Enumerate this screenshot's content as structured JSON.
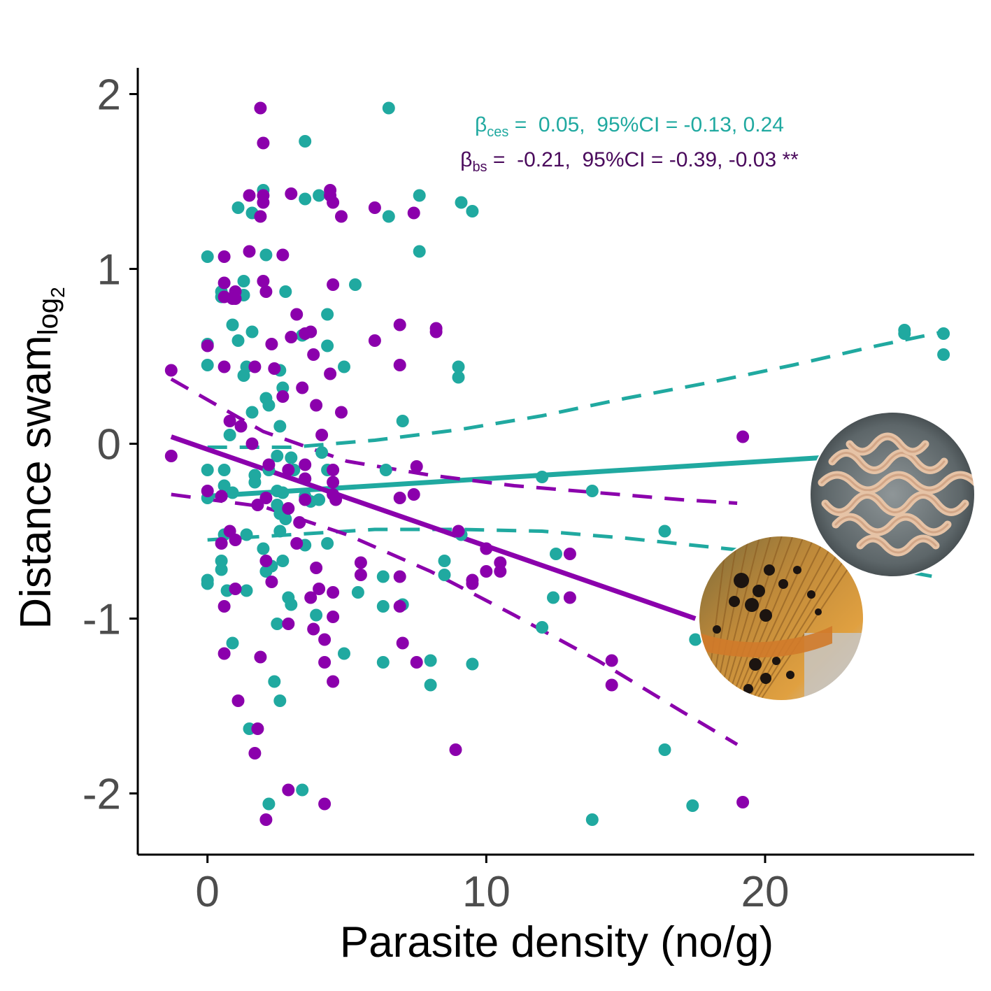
{
  "chart_data": {
    "type": "scatter",
    "xlabel": "Parasite density (no/g)",
    "ylabel": {
      "main": "Distance swam",
      "sub": "log",
      "subsub": "2"
    },
    "xlim": [
      -2.5,
      27.5
    ],
    "ylim": [
      -2.35,
      2.15
    ],
    "xticks": [
      0,
      10,
      20
    ],
    "yticks": [
      -2,
      -1,
      0,
      1,
      2
    ],
    "grid": false,
    "legend": "none",
    "colors": {
      "ces": "#20a9a0",
      "bs": "#8b00ac",
      "bs_annot": "#4a0a5c"
    },
    "annotations": [
      {
        "series": "ces",
        "beta": "β",
        "sub": "ces",
        "text": " =  0.05,  95%CI = -0.13, 0.24"
      },
      {
        "series": "bs",
        "beta": "β",
        "sub": "bs",
        "text": " =  -0.21,  95%CI = -0.39, -0.03 **"
      }
    ],
    "series": [
      {
        "id": "ces",
        "points": [
          [
            6.5,
            1.92
          ],
          [
            3.5,
            1.73
          ],
          [
            2.0,
            1.45
          ],
          [
            3.5,
            1.4
          ],
          [
            4.0,
            1.42
          ],
          [
            7.6,
            1.42
          ],
          [
            9.1,
            1.38
          ],
          [
            9.5,
            1.33
          ],
          [
            1.1,
            1.35
          ],
          [
            1.6,
            1.32
          ],
          [
            6.5,
            1.3
          ],
          [
            7.6,
            1.1
          ],
          [
            0.0,
            1.07
          ],
          [
            2.1,
            1.08
          ],
          [
            5.3,
            0.91
          ],
          [
            2.8,
            0.87
          ],
          [
            1.3,
            0.93
          ],
          [
            1.3,
            0.85
          ],
          [
            0.5,
            0.87
          ],
          [
            0.5,
            0.84
          ],
          [
            4.3,
            0.74
          ],
          [
            0.9,
            0.68
          ],
          [
            1.6,
            0.64
          ],
          [
            3.4,
            0.62
          ],
          [
            1.1,
            0.59
          ],
          [
            4.3,
            0.56
          ],
          [
            0.0,
            0.57
          ],
          [
            9.0,
            0.44
          ],
          [
            9.0,
            0.38
          ],
          [
            4.9,
            0.44
          ],
          [
            0.0,
            0.45
          ],
          [
            2.6,
            0.42
          ],
          [
            1.4,
            0.44
          ],
          [
            1.3,
            0.39
          ],
          [
            25.0,
            0.65
          ],
          [
            25.0,
            0.63
          ],
          [
            26.4,
            0.63
          ],
          [
            26.4,
            0.51
          ],
          [
            2.7,
            0.32
          ],
          [
            2.1,
            0.26
          ],
          [
            2.2,
            0.22
          ],
          [
            1.6,
            0.18
          ],
          [
            7.0,
            0.13
          ],
          [
            2.6,
            0.1
          ],
          [
            0.8,
            0.05
          ],
          [
            4.1,
            -0.05
          ],
          [
            2.5,
            -0.07
          ],
          [
            3.0,
            -0.08
          ],
          [
            0.0,
            -0.15
          ],
          [
            0.6,
            -0.15
          ],
          [
            2.2,
            -0.15
          ],
          [
            3.1,
            -0.15
          ],
          [
            4.3,
            -0.15
          ],
          [
            6.4,
            -0.15
          ],
          [
            1.7,
            -0.18
          ],
          [
            3.5,
            -0.2
          ],
          [
            12.0,
            -0.19
          ],
          [
            0.6,
            -0.24
          ],
          [
            1.7,
            -0.22
          ],
          [
            2.5,
            -0.27
          ],
          [
            0.9,
            -0.28
          ],
          [
            2.7,
            -0.28
          ],
          [
            3.5,
            -0.3
          ],
          [
            4.0,
            -0.32
          ],
          [
            13.8,
            -0.27
          ],
          [
            2.5,
            -0.35
          ],
          [
            0.0,
            -0.31
          ],
          [
            3.7,
            -0.33
          ],
          [
            2.6,
            -0.4
          ],
          [
            2.8,
            -0.43
          ],
          [
            2.6,
            -0.5
          ],
          [
            0.6,
            -0.52
          ],
          [
            9.1,
            -0.52
          ],
          [
            16.4,
            -0.5
          ],
          [
            1.4,
            -0.52
          ],
          [
            2.0,
            -0.6
          ],
          [
            3.5,
            -0.58
          ],
          [
            4.3,
            -0.57
          ],
          [
            12.5,
            -0.63
          ],
          [
            0.5,
            -0.67
          ],
          [
            2.3,
            -0.7
          ],
          [
            2.7,
            -0.67
          ],
          [
            8.5,
            -0.67
          ],
          [
            0.5,
            -0.72
          ],
          [
            2.1,
            -0.73
          ],
          [
            0.0,
            -0.78
          ],
          [
            0.0,
            -0.8
          ],
          [
            6.3,
            -0.76
          ],
          [
            8.5,
            -0.75
          ],
          [
            0.7,
            -0.84
          ],
          [
            5.4,
            -0.85
          ],
          [
            1.4,
            -0.84
          ],
          [
            2.9,
            -0.88
          ],
          [
            12.4,
            -0.88
          ],
          [
            3.0,
            -0.92
          ],
          [
            6.3,
            -0.93
          ],
          [
            7.0,
            -0.92
          ],
          [
            3.9,
            -0.98
          ],
          [
            2.5,
            -1.03
          ],
          [
            12.0,
            -1.05
          ],
          [
            0.9,
            -1.14
          ],
          [
            17.5,
            -1.12
          ],
          [
            4.9,
            -1.2
          ],
          [
            6.3,
            -1.25
          ],
          [
            8.0,
            -1.24
          ],
          [
            9.5,
            -1.26
          ],
          [
            2.4,
            -1.36
          ],
          [
            8.0,
            -1.38
          ],
          [
            2.6,
            -1.47
          ],
          [
            1.5,
            -1.63
          ],
          [
            16.4,
            -1.75
          ],
          [
            3.4,
            -1.98
          ],
          [
            2.2,
            -2.06
          ],
          [
            17.4,
            -2.07
          ],
          [
            13.8,
            -2.15
          ]
        ]
      },
      {
        "id": "bs",
        "points": [
          [
            1.9,
            1.92
          ],
          [
            2.0,
            1.72
          ],
          [
            1.5,
            1.42
          ],
          [
            2.0,
            1.42
          ],
          [
            2.0,
            1.38
          ],
          [
            3.0,
            1.43
          ],
          [
            4.4,
            1.45
          ],
          [
            4.4,
            1.42
          ],
          [
            4.5,
            1.38
          ],
          [
            1.9,
            1.3
          ],
          [
            7.4,
            1.32
          ],
          [
            4.8,
            1.3
          ],
          [
            6.0,
            1.35
          ],
          [
            1.5,
            1.1
          ],
          [
            2.7,
            1.08
          ],
          [
            0.6,
            1.07
          ],
          [
            2.0,
            0.93
          ],
          [
            0.6,
            0.92
          ],
          [
            4.5,
            0.91
          ],
          [
            1.0,
            0.87
          ],
          [
            2.1,
            0.87
          ],
          [
            0.6,
            0.84
          ],
          [
            0.9,
            0.83
          ],
          [
            1.0,
            0.83
          ],
          [
            3.2,
            0.74
          ],
          [
            3.7,
            0.64
          ],
          [
            3.5,
            0.63
          ],
          [
            3.0,
            0.61
          ],
          [
            6.9,
            0.68
          ],
          [
            8.2,
            0.66
          ],
          [
            8.2,
            0.64
          ],
          [
            6.0,
            0.59
          ],
          [
            0.0,
            0.56
          ],
          [
            2.3,
            0.57
          ],
          [
            3.8,
            0.51
          ],
          [
            1.7,
            0.44
          ],
          [
            2.4,
            0.43
          ],
          [
            0.6,
            0.44
          ],
          [
            6.9,
            0.45
          ],
          [
            4.4,
            0.4
          ],
          [
            -1.3,
            0.42
          ],
          [
            3.4,
            0.32
          ],
          [
            2.7,
            0.27
          ],
          [
            3.9,
            0.22
          ],
          [
            4.8,
            0.18
          ],
          [
            0.8,
            0.13
          ],
          [
            1.2,
            0.1
          ],
          [
            4.1,
            0.05
          ],
          [
            19.2,
            0.04
          ],
          [
            1.6,
            0.0
          ],
          [
            -1.3,
            -0.07
          ],
          [
            2.2,
            -0.12
          ],
          [
            3.5,
            -0.12
          ],
          [
            4.5,
            -0.15
          ],
          [
            7.5,
            -0.13
          ],
          [
            2.9,
            -0.15
          ],
          [
            3.5,
            -0.2
          ],
          [
            4.5,
            -0.22
          ],
          [
            0.0,
            -0.27
          ],
          [
            4.5,
            -0.29
          ],
          [
            0.5,
            -0.3
          ],
          [
            7.4,
            -0.29
          ],
          [
            2.1,
            -0.31
          ],
          [
            3.5,
            -0.32
          ],
          [
            4.6,
            -0.32
          ],
          [
            6.9,
            -0.31
          ],
          [
            1.8,
            -0.35
          ],
          [
            2.9,
            -0.37
          ],
          [
            3.3,
            -0.45
          ],
          [
            0.8,
            -0.5
          ],
          [
            9.0,
            -0.5
          ],
          [
            1.0,
            -0.55
          ],
          [
            0.5,
            -0.57
          ],
          [
            3.2,
            -0.57
          ],
          [
            10.0,
            -0.6
          ],
          [
            2.1,
            -0.67
          ],
          [
            5.5,
            -0.68
          ],
          [
            10.5,
            -0.68
          ],
          [
            3.9,
            -0.71
          ],
          [
            10.0,
            -0.73
          ],
          [
            10.5,
            -0.73
          ],
          [
            13.0,
            -0.63
          ],
          [
            2.3,
            -0.79
          ],
          [
            5.5,
            -0.75
          ],
          [
            6.9,
            -0.76
          ],
          [
            9.5,
            -0.78
          ],
          [
            9.5,
            -0.8
          ],
          [
            4.0,
            -0.83
          ],
          [
            4.5,
            -0.85
          ],
          [
            1.0,
            -0.83
          ],
          [
            13.0,
            -0.88
          ],
          [
            3.7,
            -0.88
          ],
          [
            0.6,
            -0.93
          ],
          [
            6.9,
            -0.93
          ],
          [
            4.5,
            -0.99
          ],
          [
            2.9,
            -1.03
          ],
          [
            3.8,
            -1.06
          ],
          [
            4.2,
            -1.12
          ],
          [
            7.0,
            -1.14
          ],
          [
            0.6,
            -1.2
          ],
          [
            1.9,
            -1.22
          ],
          [
            4.2,
            -1.25
          ],
          [
            7.5,
            -1.25
          ],
          [
            14.5,
            -1.24
          ],
          [
            4.5,
            -1.36
          ],
          [
            14.5,
            -1.38
          ],
          [
            1.1,
            -1.47
          ],
          [
            1.8,
            -1.63
          ],
          [
            1.7,
            -1.77
          ],
          [
            8.9,
            -1.75
          ],
          [
            2.9,
            -1.98
          ],
          [
            4.2,
            -2.06
          ],
          [
            2.1,
            -2.15
          ],
          [
            19.2,
            -2.05
          ]
        ]
      }
    ],
    "fit_lines": [
      {
        "series": "ces",
        "style": "solid",
        "x": [
          0.0,
          22.0
        ],
        "y": [
          -0.3,
          -0.08
        ]
      },
      {
        "series": "ces",
        "style": "dashed",
        "x": [
          0.0,
          3.0,
          6.0,
          9.0,
          12.0,
          15.0,
          18.0,
          21.0,
          24.0,
          26.4
        ],
        "y": [
          -0.02,
          -0.02,
          0.02,
          0.08,
          0.16,
          0.26,
          0.35,
          0.45,
          0.56,
          0.64
        ]
      },
      {
        "series": "ces",
        "style": "dashed",
        "x": [
          0.0,
          3.0,
          6.0,
          9.0,
          12.0,
          15.0,
          18.0,
          21.0,
          24.0,
          26.4
        ],
        "y": [
          -0.55,
          -0.52,
          -0.49,
          -0.49,
          -0.5,
          -0.54,
          -0.59,
          -0.64,
          -0.7,
          -0.77
        ]
      },
      {
        "series": "bs",
        "style": "solid",
        "x": [
          -1.3,
          17.5
        ],
        "y": [
          0.04,
          -1.0
        ]
      },
      {
        "series": "bs",
        "style": "dashed",
        "x": [
          -1.3,
          2.0,
          5.0,
          8.0,
          11.0,
          14.0,
          17.0,
          19.0
        ],
        "y": [
          0.37,
          0.07,
          -0.1,
          -0.18,
          -0.24,
          -0.28,
          -0.32,
          -0.34
        ]
      },
      {
        "series": "bs",
        "style": "dashed",
        "x": [
          -1.3,
          2.0,
          5.0,
          8.0,
          11.0,
          14.0,
          17.0,
          19.0
        ],
        "y": [
          -0.29,
          -0.36,
          -0.52,
          -0.73,
          -0.98,
          -1.24,
          -1.53,
          -1.72
        ]
      }
    ],
    "photos": [
      {
        "name": "parasite-worms-photo"
      },
      {
        "name": "fish-fin-black-spots-photo"
      }
    ]
  }
}
